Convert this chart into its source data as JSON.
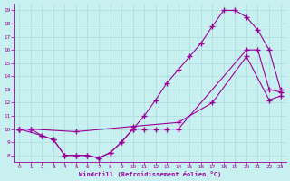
{
  "xlabel": "Windchill (Refroidissement éolien,°C)",
  "bg_color": "#c8f0f0",
  "line_color": "#990099",
  "grid_color": "#aadada",
  "xlim": [
    -0.5,
    23.5
  ],
  "ylim": [
    7.5,
    19.5
  ],
  "xticks": [
    0,
    1,
    2,
    3,
    4,
    5,
    6,
    7,
    8,
    9,
    10,
    11,
    12,
    13,
    14,
    15,
    16,
    17,
    18,
    19,
    20,
    21,
    22,
    23
  ],
  "yticks": [
    8,
    9,
    10,
    11,
    12,
    13,
    14,
    15,
    16,
    17,
    18,
    19
  ],
  "line1_x": [
    0,
    1,
    2,
    3,
    4,
    5,
    6,
    7,
    8,
    9,
    10,
    11,
    12,
    13,
    14,
    15,
    16,
    17,
    18,
    19,
    20,
    21,
    22,
    23
  ],
  "line1_y": [
    10,
    10,
    9.5,
    9.2,
    8.0,
    8.0,
    8.0,
    7.8,
    8.2,
    9.0,
    10.0,
    11.0,
    12.2,
    13.5,
    14.5,
    15.5,
    16.5,
    17.8,
    19.0,
    19.0,
    18.5,
    17.5,
    16.0,
    13.0
  ],
  "line2_x": [
    0,
    2,
    3,
    4,
    5,
    6,
    7,
    8,
    9,
    10,
    11,
    12,
    13,
    14,
    20,
    21,
    22,
    23
  ],
  "line2_y": [
    10,
    9.5,
    9.2,
    8.0,
    8.0,
    8.0,
    7.8,
    8.2,
    9.0,
    10.0,
    10.0,
    10.0,
    10.0,
    10.0,
    16.0,
    16.0,
    13.0,
    12.8
  ],
  "line3_x": [
    0,
    1,
    5,
    10,
    14,
    17,
    20,
    22,
    23
  ],
  "line3_y": [
    10,
    10,
    9.8,
    10.2,
    10.5,
    12.0,
    15.5,
    12.2,
    12.5
  ]
}
